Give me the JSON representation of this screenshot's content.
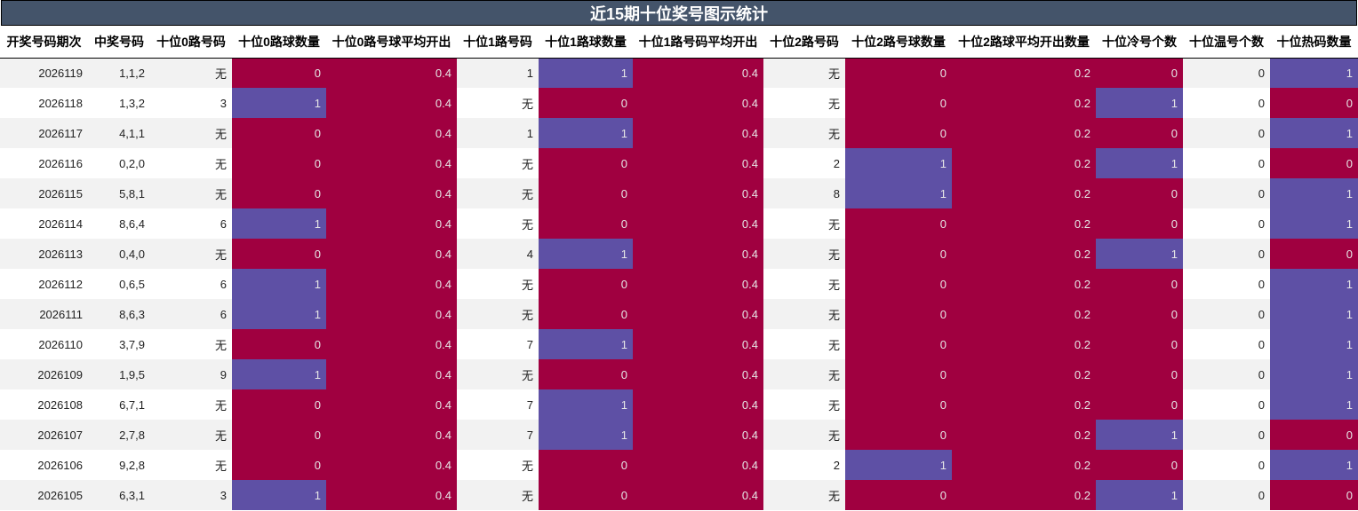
{
  "title": "近15期十位奖号图示统计",
  "colors": {
    "header_bg": "#44546a",
    "red": "#a00040",
    "purple": "#5e50a5"
  },
  "columns": [
    "开奖号码期次",
    "中奖号码",
    "十位0路号码",
    "十位0路球数量",
    "十位0路号球平均开出",
    "十位1路号码",
    "十位1路球数量",
    "十位1路号码平均开出",
    "十位2路号码",
    "十位2路号球数量",
    "十位2路球平均开出数量",
    "十位冷号个数",
    "十位温号个数",
    "十位热码数量"
  ],
  "rows": [
    [
      "2026119",
      "1,1,2",
      "无",
      "0",
      "0.4",
      "1",
      "1",
      "0.4",
      "无",
      "0",
      "0.2",
      "0",
      "0",
      "1"
    ],
    [
      "2026118",
      "1,3,2",
      "3",
      "1",
      "0.4",
      "无",
      "0",
      "0.4",
      "无",
      "0",
      "0.2",
      "1",
      "0",
      "0"
    ],
    [
      "2026117",
      "4,1,1",
      "无",
      "0",
      "0.4",
      "1",
      "1",
      "0.4",
      "无",
      "0",
      "0.2",
      "0",
      "0",
      "1"
    ],
    [
      "2026116",
      "0,2,0",
      "无",
      "0",
      "0.4",
      "无",
      "0",
      "0.4",
      "2",
      "1",
      "0.2",
      "1",
      "0",
      "0"
    ],
    [
      "2026115",
      "5,8,1",
      "无",
      "0",
      "0.4",
      "无",
      "0",
      "0.4",
      "8",
      "1",
      "0.2",
      "0",
      "0",
      "1"
    ],
    [
      "2026114",
      "8,6,4",
      "6",
      "1",
      "0.4",
      "无",
      "0",
      "0.4",
      "无",
      "0",
      "0.2",
      "0",
      "0",
      "1"
    ],
    [
      "2026113",
      "0,4,0",
      "无",
      "0",
      "0.4",
      "4",
      "1",
      "0.4",
      "无",
      "0",
      "0.2",
      "1",
      "0",
      "0"
    ],
    [
      "2026112",
      "0,6,5",
      "6",
      "1",
      "0.4",
      "无",
      "0",
      "0.4",
      "无",
      "0",
      "0.2",
      "0",
      "0",
      "1"
    ],
    [
      "2026111",
      "8,6,3",
      "6",
      "1",
      "0.4",
      "无",
      "0",
      "0.4",
      "无",
      "0",
      "0.2",
      "0",
      "0",
      "1"
    ],
    [
      "2026110",
      "3,7,9",
      "无",
      "0",
      "0.4",
      "7",
      "1",
      "0.4",
      "无",
      "0",
      "0.2",
      "0",
      "0",
      "1"
    ],
    [
      "2026109",
      "1,9,5",
      "9",
      "1",
      "0.4",
      "无",
      "0",
      "0.4",
      "无",
      "0",
      "0.2",
      "0",
      "0",
      "1"
    ],
    [
      "2026108",
      "6,7,1",
      "无",
      "0",
      "0.4",
      "7",
      "1",
      "0.4",
      "无",
      "0",
      "0.2",
      "0",
      "0",
      "1"
    ],
    [
      "2026107",
      "2,7,8",
      "无",
      "0",
      "0.4",
      "7",
      "1",
      "0.4",
      "无",
      "0",
      "0.2",
      "1",
      "0",
      "0"
    ],
    [
      "2026106",
      "9,2,8",
      "无",
      "0",
      "0.4",
      "无",
      "0",
      "0.4",
      "2",
      "1",
      "0.2",
      "0",
      "0",
      "1"
    ],
    [
      "2026105",
      "6,3,1",
      "3",
      "1",
      "0.4",
      "无",
      "0",
      "0.4",
      "无",
      "0",
      "0.2",
      "1",
      "0",
      "0"
    ]
  ]
}
